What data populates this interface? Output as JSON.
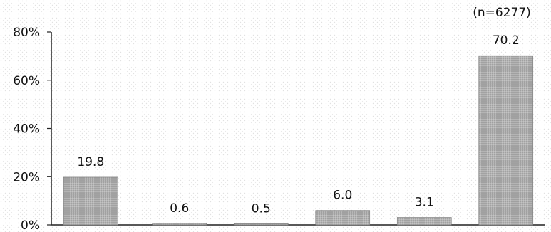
{
  "chart_data": {
    "type": "bar",
    "categories": [
      "",
      "",
      "",
      "",
      "",
      ""
    ],
    "values": [
      19.8,
      0.6,
      0.5,
      6.0,
      3.1,
      70.2
    ],
    "data_labels": [
      "19.8",
      "0.6",
      "0.5",
      "6.0",
      "3.1",
      "70.2"
    ],
    "ylim": [
      0,
      80
    ],
    "yticks": [
      0,
      20,
      40,
      60,
      80
    ],
    "ytick_labels": [
      "0%",
      "20%",
      "40%",
      "60%",
      "80%"
    ],
    "annotation": "(n=6277)",
    "title": "",
    "xlabel": "",
    "ylabel": "",
    "grid": false,
    "bar_color": "#a8a8a8",
    "background_texture": "dotted"
  }
}
